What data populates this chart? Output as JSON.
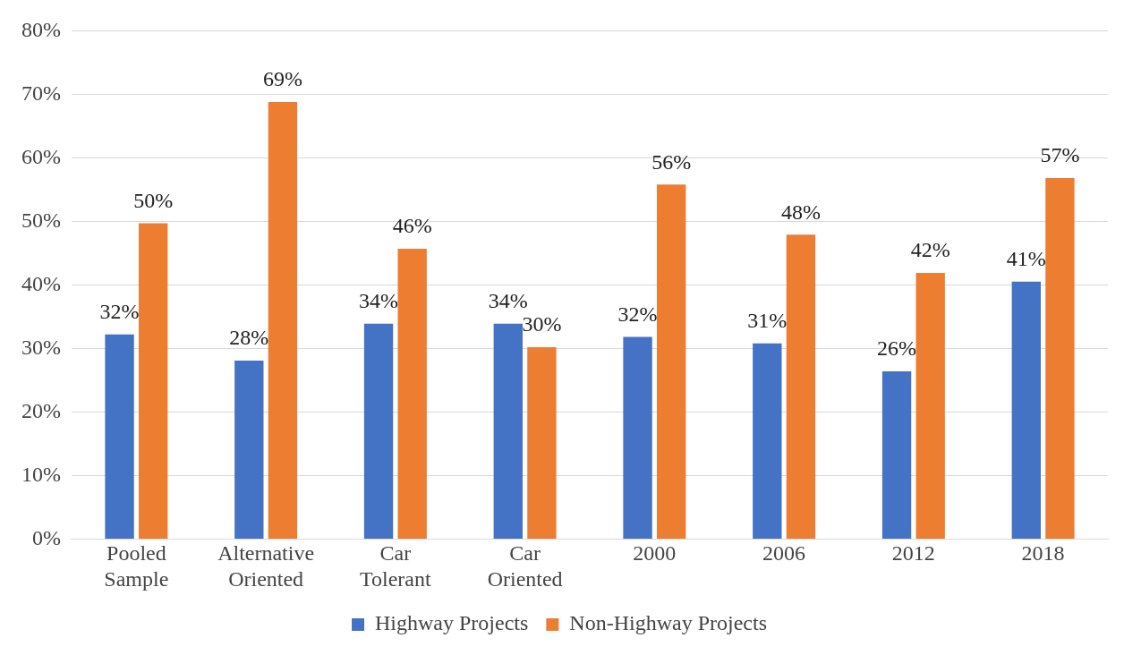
{
  "chart_data": {
    "type": "bar",
    "categories": [
      "Pooled Sample",
      "Alternative Oriented",
      "Car Tolerant",
      "Car Oriented",
      "2000",
      "2006",
      "2012",
      "2018"
    ],
    "series": [
      {
        "name": "Highway Projects",
        "color": "#4472c4",
        "values": [
          32.2,
          28.1,
          33.9,
          33.9,
          31.8,
          30.8,
          26.4,
          40.5
        ],
        "value_labels": [
          "32%",
          "28%",
          "34%",
          "34%",
          "32%",
          "31%",
          "26%",
          "41%"
        ]
      },
      {
        "name": "Non-Highway Projects",
        "color": "#ed7d31",
        "values": [
          49.7,
          68.8,
          45.7,
          30.2,
          55.8,
          47.9,
          41.9,
          56.8
        ],
        "value_labels": [
          "50%",
          "69%",
          "46%",
          "30%",
          "56%",
          "48%",
          "42%",
          "57%"
        ]
      }
    ],
    "ylim": [
      0,
      80
    ],
    "yticks": [
      {
        "value": 0,
        "label": "0%"
      },
      {
        "value": 10,
        "label": "10%"
      },
      {
        "value": 20,
        "label": "20%"
      },
      {
        "value": 30,
        "label": "30%"
      },
      {
        "value": 40,
        "label": "40%"
      },
      {
        "value": 50,
        "label": "50%"
      },
      {
        "value": 60,
        "label": "60%"
      },
      {
        "value": 70,
        "label": "70%"
      },
      {
        "value": 80,
        "label": "80%"
      }
    ],
    "grid": "y",
    "legend": "bottom"
  }
}
